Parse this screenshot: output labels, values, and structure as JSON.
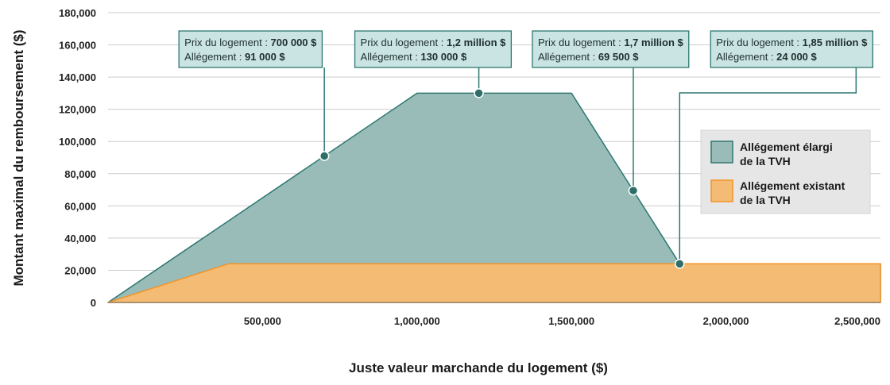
{
  "chart_data": {
    "type": "area",
    "xlabel": "Juste valeur marchande du logement ($)",
    "ylabel": "Montant maximal du remboursement ($)",
    "xlim": [
      0,
      2500000
    ],
    "ylim": [
      0,
      180000
    ],
    "x_ticks": [
      {
        "value": 500000,
        "label": "500,000"
      },
      {
        "value": 1000000,
        "label": "1,000,000"
      },
      {
        "value": 1500000,
        "label": "1,500,000"
      },
      {
        "value": 2000000,
        "label": "2,000,000"
      },
      {
        "value": 2500000,
        "label": "2,500,000"
      }
    ],
    "y_ticks": [
      {
        "value": 0,
        "label": "0"
      },
      {
        "value": 20000,
        "label": "20,000"
      },
      {
        "value": 40000,
        "label": "40,000"
      },
      {
        "value": 60000,
        "label": "60,000"
      },
      {
        "value": 80000,
        "label": "80,000"
      },
      {
        "value": 100000,
        "label": "100,000"
      },
      {
        "value": 120000,
        "label": "120,000"
      },
      {
        "value": 140000,
        "label": "140,000"
      },
      {
        "value": 160000,
        "label": "160,000"
      },
      {
        "value": 180000,
        "label": "180,000"
      }
    ],
    "grid": true,
    "legend_position": "right",
    "series": [
      {
        "name": "Allégement élargi de la TVH",
        "legend_lines": [
          "Allégement élargi",
          "de la TVH"
        ],
        "color": "#99bcb9",
        "stroke": "#2e7770",
        "x": [
          0,
          1000000,
          1500000,
          1850000,
          2500000
        ],
        "y": [
          0,
          130000,
          130000,
          24000,
          24000
        ]
      },
      {
        "name": "Allégement existant de la TVH",
        "legend_lines": [
          "Allégement existant",
          "de la TVH"
        ],
        "color": "#f4bb74",
        "stroke": "#f39326",
        "x": [
          0,
          390000,
          2500000
        ],
        "y": [
          0,
          24000,
          24000
        ]
      }
    ],
    "annotations": [
      {
        "x": 700000,
        "y": 91000,
        "prix_label": "Prix du logement : ",
        "prix_value": "700 000 $",
        "allegement_label": "Allégement : ",
        "allegement_value": "91 000 $"
      },
      {
        "x": 1200000,
        "y": 130000,
        "prix_label": "Prix du logement : ",
        "prix_value": "1,2 million $",
        "allegement_label": "Allégement : ",
        "allegement_value": "130 000 $"
      },
      {
        "x": 1700000,
        "y": 69500,
        "prix_label": "Prix du logement : ",
        "prix_value": "1,7 million $",
        "allegement_label": "Allégement : ",
        "allegement_value": "69 500 $"
      },
      {
        "x": 1850000,
        "y": 24000,
        "prix_label": "Prix du logement : ",
        "prix_value": "1,85 million $",
        "allegement_label": "Allégement : ",
        "allegement_value": "24 000 $"
      }
    ],
    "colors": {
      "annotation_fill": "#c9e4e2",
      "annotation_stroke": "#2e7770",
      "legend_fill": "#e6e6e6",
      "grid": "#cccccc"
    }
  }
}
